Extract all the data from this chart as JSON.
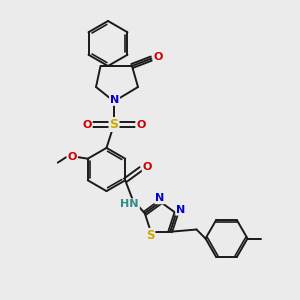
{
  "background_color": "#ebebeb",
  "bond_color": "#1a1a1a",
  "bond_width": 1.4,
  "figsize": [
    3.0,
    3.0
  ],
  "dpi": 100,
  "N_blue": "#0000cc",
  "O_red": "#cc0000",
  "S_yellow": "#ccaa00",
  "N_teal": "#2e8b8b",
  "xlim": [
    0,
    10
  ],
  "ylim": [
    0,
    10
  ]
}
